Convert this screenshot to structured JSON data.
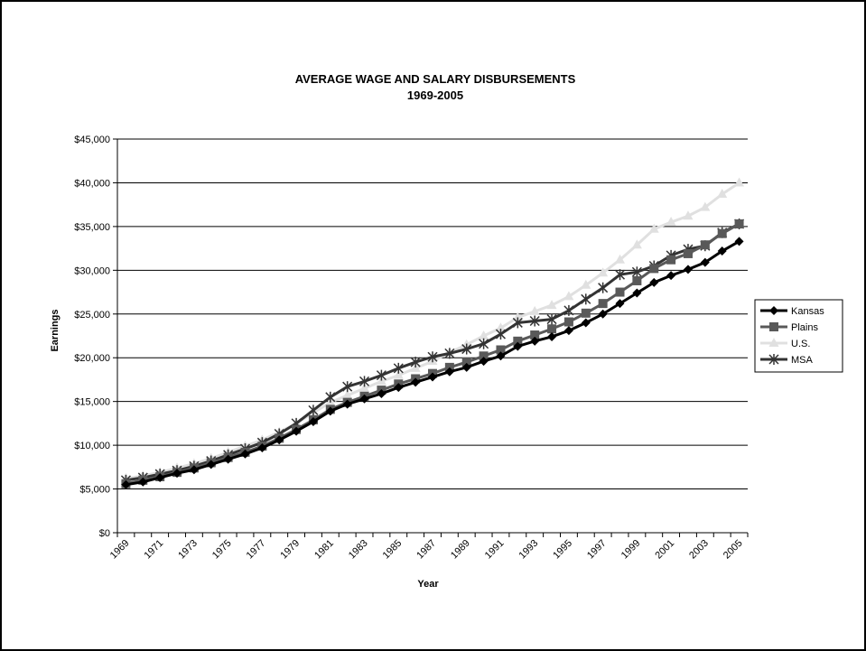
{
  "chart_data": {
    "type": "line",
    "title": "AVERAGE WAGE AND SALARY DISBURSEMENTS",
    "subtitle": "1969-2005",
    "xlabel": "Year",
    "ylabel": "Earnings",
    "ylim": [
      0,
      45000
    ],
    "yticks": [
      0,
      5000,
      10000,
      15000,
      20000,
      25000,
      30000,
      35000,
      40000,
      45000
    ],
    "ytick_labels": [
      "$0",
      "$5,000",
      "$10,000",
      "$15,000",
      "$20,000",
      "$25,000",
      "$30,000",
      "$35,000",
      "$40,000",
      "$45,000"
    ],
    "x": [
      1969,
      1970,
      1971,
      1972,
      1973,
      1974,
      1975,
      1976,
      1977,
      1978,
      1979,
      1980,
      1981,
      1982,
      1983,
      1984,
      1985,
      1986,
      1987,
      1988,
      1989,
      1990,
      1991,
      1992,
      1993,
      1994,
      1995,
      1996,
      1997,
      1998,
      1999,
      2000,
      2001,
      2002,
      2003,
      2004,
      2005
    ],
    "xtick_labels": [
      "1969",
      "1971",
      "1973",
      "1975",
      "1977",
      "1979",
      "1981",
      "1983",
      "1985",
      "1987",
      "1989",
      "1991",
      "1993",
      "1995",
      "1997",
      "1999",
      "2001",
      "2003",
      "2005"
    ],
    "grid": "horizontal",
    "legend_position": "right",
    "series": [
      {
        "name": "Kansas",
        "color": "#000000",
        "marker": "diamond",
        "values": [
          5500,
          5800,
          6300,
          6800,
          7200,
          7800,
          8400,
          9000,
          9700,
          10600,
          11600,
          12700,
          13900,
          14700,
          15300,
          15900,
          16600,
          17200,
          17800,
          18400,
          18900,
          19600,
          20200,
          21300,
          21900,
          22400,
          23100,
          24000,
          25000,
          26200,
          27400,
          28600,
          29400,
          30100,
          30900,
          32200,
          33300
        ]
      },
      {
        "name": "Plains",
        "color": "#595959",
        "marker": "square",
        "values": [
          5600,
          6000,
          6400,
          6900,
          7400,
          8000,
          8600,
          9200,
          9900,
          10800,
          11800,
          12900,
          14100,
          14900,
          15600,
          16300,
          17000,
          17600,
          18200,
          18900,
          19500,
          20200,
          20900,
          21900,
          22600,
          23300,
          24100,
          25100,
          26200,
          27500,
          28800,
          30200,
          31200,
          31900,
          32900,
          34200,
          35300
        ]
      },
      {
        "name": "U.S.",
        "color": "#e0e0e0",
        "marker": "triangle",
        "values": [
          6200,
          6500,
          6900,
          7400,
          7900,
          8500,
          9200,
          9900,
          10600,
          11500,
          12500,
          13700,
          14900,
          15700,
          16500,
          17300,
          18000,
          18800,
          19600,
          20600,
          21500,
          22500,
          23400,
          24600,
          25300,
          26000,
          27000,
          28300,
          29700,
          31200,
          32900,
          34700,
          35500,
          36200,
          37200,
          38700,
          40000
        ]
      },
      {
        "name": "MSA",
        "color": "#333333",
        "marker": "star",
        "values": [
          6000,
          6300,
          6700,
          7100,
          7600,
          8200,
          8900,
          9600,
          10300,
          11300,
          12500,
          14000,
          15500,
          16700,
          17300,
          18000,
          18800,
          19500,
          20100,
          20500,
          21000,
          21600,
          22700,
          24000,
          24200,
          24400,
          25400,
          26700,
          28000,
          29500,
          29800,
          30500,
          31700,
          32400,
          32800,
          34300,
          35300
        ]
      }
    ]
  }
}
